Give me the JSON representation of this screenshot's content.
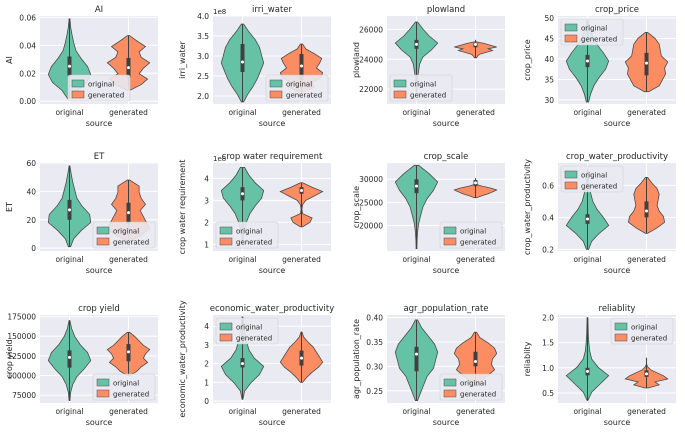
{
  "colors": {
    "original": "#66c2a5",
    "generated": "#fc8d62",
    "plot_background": "#eaeaf2",
    "grid": "#ffffff",
    "violin_edge": "#4a4a4a",
    "inner_box": "#404040",
    "median": "#ffffff",
    "text": "#262626"
  },
  "chart_data": [
    {
      "type": "violin",
      "title": "AI",
      "xlabel": "source",
      "ylabel": "AI",
      "categories": [
        "original",
        "generated"
      ],
      "ylim": [
        -0.002,
        0.061
      ],
      "yticks": [
        0.0,
        0.02,
        0.04,
        0.06
      ],
      "ytick_labels": [
        "0.00",
        "0.02",
        "0.04",
        "0.06"
      ],
      "legend": "bottom-center",
      "grid": true,
      "series": [
        {
          "name": "original",
          "min": 0.002,
          "q1": 0.018,
          "median": 0.025,
          "q3": 0.032,
          "max": 0.059,
          "density": [
            0.1,
            0.35,
            0.8,
            1.0,
            0.85,
            0.55,
            0.3,
            0.2,
            0.12,
            0.05,
            0.02
          ]
        },
        {
          "name": "generated",
          "min": 0.008,
          "q1": 0.017,
          "median": 0.024,
          "q3": 0.031,
          "max": 0.047,
          "density": [
            0.1,
            0.6,
            0.9,
            0.5,
            0.7,
            1.0,
            0.6,
            0.5,
            0.8,
            0.4,
            0.05
          ]
        }
      ]
    },
    {
      "type": "violin",
      "title": "irri_water",
      "xlabel": "source",
      "ylabel": "irri_water",
      "y_offset_label": "1e8",
      "categories": [
        "original",
        "generated"
      ],
      "ylim": [
        1.8,
        4.0
      ],
      "yticks": [
        2.0,
        2.5,
        3.0,
        3.5,
        4.0
      ],
      "ytick_labels": [
        "2.0",
        "2.5",
        "3.0",
        "3.5",
        "4.0"
      ],
      "legend": "bottom-right",
      "grid": true,
      "series": [
        {
          "name": "original",
          "min": 1.85,
          "q1": 2.6,
          "median": 2.85,
          "q3": 3.3,
          "max": 3.8,
          "density": [
            0.05,
            0.25,
            0.5,
            0.7,
            0.85,
            1.0,
            0.9,
            0.8,
            0.6,
            0.3,
            0.05
          ]
        },
        {
          "name": "generated",
          "min": 2.1,
          "q1": 2.4,
          "median": 2.75,
          "q3": 3.05,
          "max": 3.3,
          "density": [
            0.1,
            0.6,
            0.5,
            0.9,
            1.0,
            0.7,
            0.85,
            0.95,
            0.6,
            0.2,
            0.05
          ]
        }
      ]
    },
    {
      "type": "violin",
      "title": "plowland",
      "xlabel": "source",
      "ylabel": "plowland",
      "categories": [
        "original",
        "generated"
      ],
      "ylim": [
        21000,
        26900
      ],
      "yticks": [
        22000,
        24000,
        26000
      ],
      "ytick_labels": [
        "22000",
        "24000",
        "26000"
      ],
      "legend": "bottom-left",
      "grid": true,
      "series": [
        {
          "name": "original",
          "min": 21800,
          "q1": 24700,
          "median": 25000,
          "q3": 25300,
          "max": 26500,
          "density": [
            0.02,
            0.03,
            0.05,
            0.1,
            0.15,
            0.3,
            0.7,
            1.0,
            0.6,
            0.3,
            0.05
          ]
        },
        {
          "name": "generated",
          "min": 24100,
          "q1": 24800,
          "median": 25000,
          "q3": 25100,
          "max": 25300,
          "density": [
            0.05,
            0.1,
            0.2,
            0.5,
            0.8,
            0.6,
            1.0,
            0.7,
            0.4,
            0.0,
            0.0
          ]
        }
      ]
    },
    {
      "type": "violin",
      "title": "crop_price",
      "xlabel": "source",
      "ylabel": "crop_price",
      "categories": [
        "original",
        "generated"
      ],
      "ylim": [
        29,
        50.5
      ],
      "yticks": [
        30,
        35,
        40,
        45,
        50
      ],
      "ytick_labels": [
        "30",
        "35",
        "40",
        "45",
        "50"
      ],
      "legend": "top-left",
      "grid": true,
      "series": [
        {
          "name": "original",
          "min": 29.5,
          "q1": 38,
          "median": 39.5,
          "q3": 41,
          "max": 49.5,
          "density": [
            0.05,
            0.15,
            0.3,
            0.55,
            0.85,
            1.0,
            0.75,
            0.45,
            0.25,
            0.1,
            0.03
          ]
        },
        {
          "name": "generated",
          "min": 32,
          "q1": 36,
          "median": 39,
          "q3": 41.5,
          "max": 46.5,
          "density": [
            0.1,
            0.6,
            0.75,
            0.9,
            0.85,
            1.0,
            0.7,
            0.65,
            0.6,
            0.4,
            0.05
          ]
        }
      ]
    },
    {
      "type": "violin",
      "title": "ET",
      "xlabel": "source",
      "ylabel": "ET",
      "categories": [
        "original",
        "generated"
      ],
      "ylim": [
        -2,
        60
      ],
      "yticks": [
        0,
        20,
        40,
        60
      ],
      "ytick_labels": [
        "0",
        "20",
        "40",
        "60"
      ],
      "legend": "bottom-right",
      "grid": true,
      "series": [
        {
          "name": "original",
          "min": 1,
          "q1": 20,
          "median": 27,
          "q3": 34,
          "max": 58,
          "density": [
            0.05,
            0.2,
            0.55,
            1.0,
            0.95,
            0.6,
            0.35,
            0.25,
            0.15,
            0.08,
            0.02
          ]
        },
        {
          "name": "generated",
          "min": 5,
          "q1": 17,
          "median": 25,
          "q3": 32,
          "max": 48,
          "density": [
            0.05,
            0.6,
            1.0,
            0.85,
            0.7,
            0.55,
            0.8,
            0.6,
            0.5,
            0.5,
            0.05
          ]
        }
      ]
    },
    {
      "type": "violin",
      "title": "crop water requirement",
      "xlabel": "source",
      "ylabel": "crop water requirement",
      "y_offset_label": "1e8",
      "categories": [
        "original",
        "generated"
      ],
      "ylim": [
        0.7,
        4.7
      ],
      "yticks": [
        1,
        2,
        3,
        4
      ],
      "ytick_labels": [
        "1",
        "2",
        "3",
        "4"
      ],
      "legend": "bottom-left",
      "grid": true,
      "series": [
        {
          "name": "original",
          "min": 1.0,
          "q1": 3.0,
          "median": 3.3,
          "q3": 3.6,
          "max": 4.5,
          "density": [
            0.02,
            0.03,
            0.1,
            0.2,
            0.35,
            0.6,
            0.9,
            1.0,
            0.6,
            0.3,
            0.1
          ]
        },
        {
          "name": "generated",
          "min": 1.8,
          "q1": 3.3,
          "median": 3.45,
          "q3": 3.6,
          "max": 3.8,
          "density": [
            0.05,
            0.4,
            0.5,
            0.05,
            0.02,
            0.05,
            0.2,
            0.6,
            1.0,
            0.5,
            0.05
          ]
        }
      ]
    },
    {
      "type": "violin",
      "title": "crop_scale",
      "xlabel": "source",
      "ylabel": "crop_scale",
      "categories": [
        "original",
        "generated"
      ],
      "ylim": [
        14500,
        33500
      ],
      "yticks": [
        20000,
        25000,
        30000
      ],
      "ytick_labels": [
        "20000",
        "25000",
        "30000"
      ],
      "legend": "bottom-right",
      "grid": true,
      "series": [
        {
          "name": "original",
          "min": 15000,
          "q1": 27000,
          "median": 28500,
          "q3": 30000,
          "max": 33000,
          "density": [
            0.02,
            0.03,
            0.05,
            0.1,
            0.2,
            0.3,
            0.5,
            0.8,
            1.0,
            0.6,
            0.1
          ]
        },
        {
          "name": "generated",
          "min": 26000,
          "q1": 28500,
          "median": 29200,
          "q3": 29800,
          "max": 30200,
          "density": [
            0.05,
            0.3,
            0.6,
            0.8,
            1.0,
            0.7,
            0.3,
            0.0,
            0.0,
            0.0,
            0.0
          ]
        }
      ]
    },
    {
      "type": "violin",
      "title": "crop_water_productivity",
      "xlabel": "source",
      "ylabel": "crop_water_productivity",
      "categories": [
        "original",
        "generated"
      ],
      "ylim": [
        0.19,
        0.74
      ],
      "yticks": [
        0.2,
        0.4,
        0.6
      ],
      "ytick_labels": [
        "0.2",
        "0.4",
        "0.6"
      ],
      "legend": "top-left",
      "grid": true,
      "series": [
        {
          "name": "original",
          "min": 0.2,
          "q1": 0.36,
          "median": 0.39,
          "q3": 0.42,
          "max": 0.7,
          "density": [
            0.05,
            0.2,
            0.55,
            1.0,
            0.75,
            0.45,
            0.25,
            0.15,
            0.08,
            0.04,
            0.02
          ]
        },
        {
          "name": "generated",
          "min": 0.3,
          "q1": 0.4,
          "median": 0.44,
          "q3": 0.5,
          "max": 0.65,
          "density": [
            0.05,
            0.5,
            0.85,
            0.8,
            0.6,
            0.5,
            0.55,
            0.6,
            0.5,
            0.25,
            0.05
          ]
        }
      ]
    },
    {
      "type": "violin",
      "title": "crop yield",
      "xlabel": "source",
      "ylabel": "crop yield",
      "categories": [
        "original",
        "generated"
      ],
      "ylim": [
        65000,
        177000
      ],
      "yticks": [
        75000,
        100000,
        125000,
        150000,
        175000
      ],
      "ytick_labels": [
        "75000",
        "100000",
        "125000",
        "150000",
        "175000"
      ],
      "legend": "bottom-right",
      "grid": true,
      "series": [
        {
          "name": "original",
          "min": 68000,
          "q1": 110000,
          "median": 123000,
          "q3": 132000,
          "max": 170000,
          "density": [
            0.02,
            0.05,
            0.15,
            0.35,
            0.7,
            1.0,
            0.85,
            0.5,
            0.25,
            0.1,
            0.02
          ]
        },
        {
          "name": "generated",
          "min": 100000,
          "q1": 118000,
          "median": 130000,
          "q3": 140000,
          "max": 155000,
          "density": [
            0.05,
            0.4,
            0.6,
            0.9,
            0.7,
            0.8,
            1.0,
            0.7,
            0.5,
            0.3,
            0.05
          ]
        }
      ]
    },
    {
      "type": "violin",
      "title": "economic_water_productivity",
      "xlabel": "source",
      "ylabel": "economic_water_productivity",
      "categories": [
        "original",
        "generated"
      ],
      "ylim": [
        -0.1,
        4.6
      ],
      "yticks": [
        0,
        1,
        2,
        3,
        4
      ],
      "ytick_labels": [
        "0",
        "1",
        "2",
        "3",
        "4"
      ],
      "legend": "top-left",
      "grid": true,
      "series": [
        {
          "name": "original",
          "min": 0.1,
          "q1": 1.8,
          "median": 2.0,
          "q3": 2.3,
          "max": 4.5,
          "density": [
            0.02,
            0.1,
            0.4,
            0.8,
            1.0,
            0.55,
            0.3,
            0.2,
            0.12,
            0.06,
            0.02
          ]
        },
        {
          "name": "generated",
          "min": 1.0,
          "q1": 1.9,
          "median": 2.3,
          "q3": 2.7,
          "max": 3.7,
          "density": [
            0.05,
            0.25,
            0.5,
            0.8,
            1.0,
            0.85,
            0.7,
            0.55,
            0.3,
            0.1,
            0.02
          ]
        }
      ]
    },
    {
      "type": "violin",
      "title": "agr_population_rate",
      "xlabel": "source",
      "ylabel": "agr_population_rate",
      "categories": [
        "original",
        "generated"
      ],
      "ylim": [
        0.225,
        0.405
      ],
      "yticks": [
        0.25,
        0.3,
        0.35,
        0.4
      ],
      "ytick_labels": [
        "0.25",
        "0.30",
        "0.35",
        "0.40"
      ],
      "legend": "bottom-right",
      "grid": true,
      "series": [
        {
          "name": "original",
          "min": 0.23,
          "q1": 0.29,
          "median": 0.325,
          "q3": 0.34,
          "max": 0.395,
          "density": [
            0.05,
            0.2,
            0.35,
            0.5,
            0.8,
            0.9,
            1.0,
            0.85,
            0.55,
            0.25,
            0.05
          ]
        },
        {
          "name": "generated",
          "min": 0.26,
          "q1": 0.3,
          "median": 0.31,
          "q3": 0.33,
          "max": 0.37,
          "density": [
            0.1,
            0.3,
            0.6,
            0.9,
            0.75,
            0.8,
            1.0,
            0.9,
            0.6,
            0.2,
            0.05
          ]
        }
      ]
    },
    {
      "type": "violin",
      "title": "reliablity",
      "xlabel": "source",
      "ylabel": "reliablity",
      "categories": [
        "original",
        "generated"
      ],
      "ylim": [
        0.3,
        2.05
      ],
      "yticks": [
        0.5,
        1.0,
        1.5,
        2.0
      ],
      "ytick_labels": [
        "0.5",
        "1.0",
        "1.5",
        "2.0"
      ],
      "legend": "top-right",
      "grid": true,
      "series": [
        {
          "name": "original",
          "min": 0.35,
          "q1": 0.85,
          "median": 0.93,
          "q3": 1.0,
          "max": 2.0,
          "density": [
            0.02,
            0.2,
            0.6,
            1.0,
            0.5,
            0.2,
            0.1,
            0.06,
            0.04,
            0.03,
            0.02
          ]
        },
        {
          "name": "generated",
          "min": 0.6,
          "q1": 0.82,
          "median": 0.88,
          "q3": 0.95,
          "max": 1.2,
          "density": [
            0.1,
            0.6,
            0.4,
            1.0,
            0.8,
            0.5,
            0.2,
            0.05,
            0.0,
            0.0,
            0.0
          ]
        }
      ]
    }
  ]
}
